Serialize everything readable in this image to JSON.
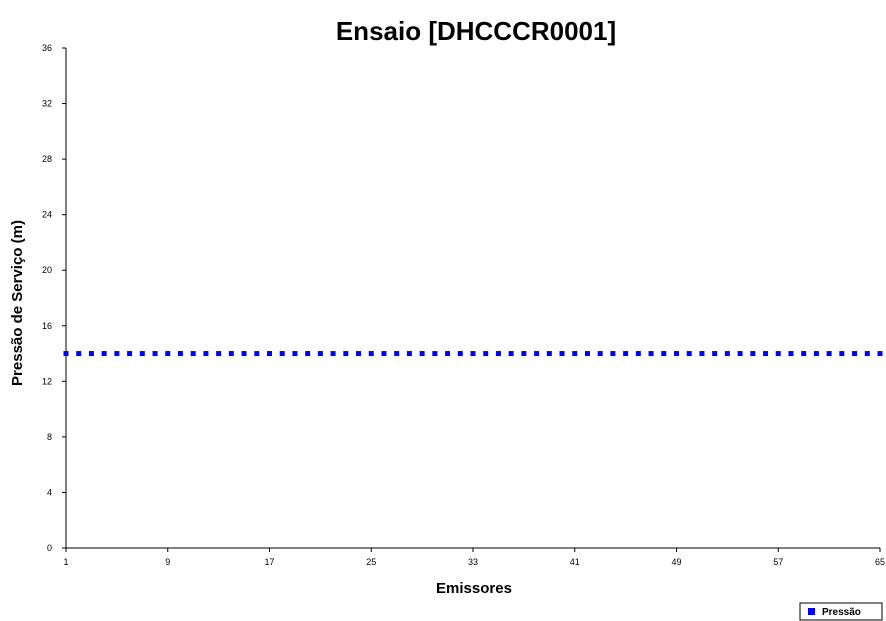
{
  "chart_data": {
    "type": "scatter",
    "title": "Ensaio [DHCCCR0001]",
    "xlabel": "Emissores",
    "ylabel": "Pressão de Serviço (m)",
    "xlim": [
      1,
      65
    ],
    "ylim": [
      0,
      36
    ],
    "x_ticks": [
      1,
      9,
      17,
      25,
      33,
      41,
      49,
      57,
      65
    ],
    "y_ticks": [
      0,
      4,
      8,
      12,
      16,
      20,
      24,
      28,
      32,
      36
    ],
    "grid": false,
    "legend_position": "bottom-right",
    "series": [
      {
        "name": "Pressão",
        "color": "#0000ff",
        "marker": "square",
        "x": [
          1,
          2,
          3,
          4,
          5,
          6,
          7,
          8,
          9,
          10,
          11,
          12,
          13,
          14,
          15,
          16,
          17,
          18,
          19,
          20,
          21,
          22,
          23,
          24,
          25,
          26,
          27,
          28,
          29,
          30,
          31,
          32,
          33,
          34,
          35,
          36,
          37,
          38,
          39,
          40,
          41,
          42,
          43,
          44,
          45,
          46,
          47,
          48,
          49,
          50,
          51,
          52,
          53,
          54,
          55,
          56,
          57,
          58,
          59,
          60,
          61,
          62,
          63,
          64,
          65
        ],
        "values": [
          14,
          14,
          14,
          14,
          14,
          14,
          14,
          14,
          14,
          14,
          14,
          14,
          14,
          14,
          14,
          14,
          14,
          14,
          14,
          14,
          14,
          14,
          14,
          14,
          14,
          14,
          14,
          14,
          14,
          14,
          14,
          14,
          14,
          14,
          14,
          14,
          14,
          14,
          14,
          14,
          14,
          14,
          14,
          14,
          14,
          14,
          14,
          14,
          14,
          14,
          14,
          14,
          14,
          14,
          14,
          14,
          14,
          14,
          14,
          14,
          14,
          14,
          14,
          14,
          14
        ]
      }
    ]
  }
}
